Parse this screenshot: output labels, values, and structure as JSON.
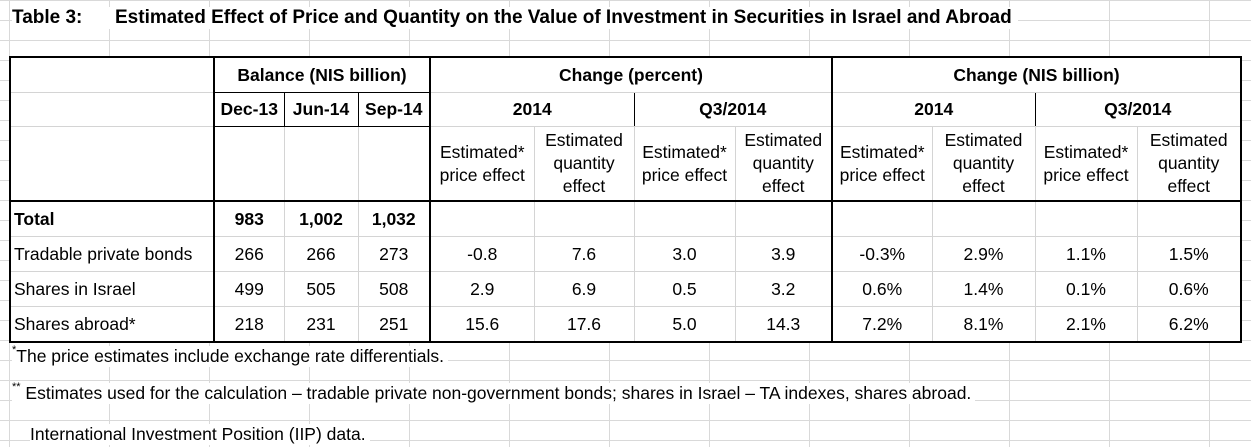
{
  "title": {
    "number": "Table 3:",
    "text": "Estimated Effect of Price and Quantity on the Value of Investment in Securities in Israel and Abroad"
  },
  "groups": {
    "balance": "Balance (NIS billion)",
    "change_percent": "Change (percent)",
    "change_nis": "Change (NIS billion)"
  },
  "periods": {
    "dec13": "Dec-13",
    "jun14": "Jun-14",
    "sep14": "Sep-14",
    "y2014": "2014",
    "q3": "Q3/2014"
  },
  "effects": {
    "price": "Estimated* price effect",
    "quantity": "Estimated quantity effect"
  },
  "rows": [
    {
      "label": "Total",
      "values": [
        "983",
        "1,002",
        "1,032",
        "",
        "",
        "",
        "",
        "",
        "",
        "",
        ""
      ]
    },
    {
      "label": "Tradable private bonds",
      "values": [
        "266",
        "266",
        "273",
        "-0.8",
        "7.6",
        "3.0",
        "3.9",
        "-0.3%",
        "2.9%",
        "1.1%",
        "1.5%"
      ]
    },
    {
      "label": "Shares in Israel",
      "values": [
        "499",
        "505",
        "508",
        "2.9",
        "6.9",
        "0.5",
        "3.2",
        "0.6%",
        "1.4%",
        "0.1%",
        "0.6%"
      ]
    },
    {
      "label": "Shares abroad*",
      "values": [
        "218",
        "231",
        "251",
        "15.6",
        "17.6",
        "5.0",
        "14.3",
        "7.2%",
        "8.1%",
        "2.1%",
        "6.2%"
      ]
    }
  ],
  "notes": {
    "n1_mark": "*",
    "n1_text": "The price estimates include exchange rate differentials.",
    "n2_mark": "**",
    "n2_text": " Estimates used for the calculation – tradable private non-government bonds; shares in Israel – TA indexes, shares abroad.",
    "n3_text": "International Investment Position (IIP) data."
  }
}
